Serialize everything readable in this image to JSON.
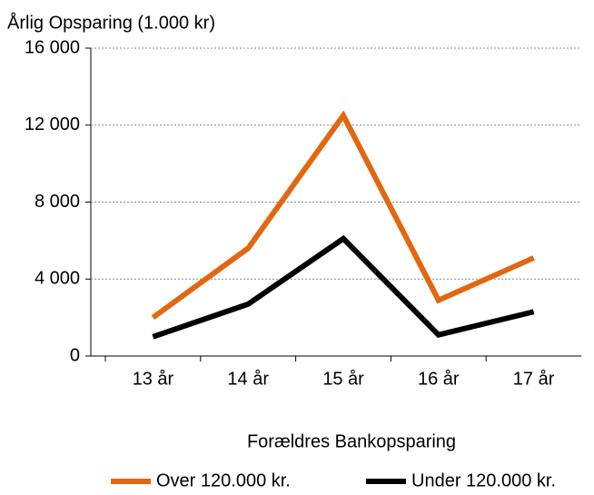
{
  "chart_data": {
    "type": "line",
    "title": "Årlig Opsparing (1.000 kr)",
    "x_label": "Forældres Bankopsparing",
    "categories": [
      "13 år",
      "14 år",
      "15 år",
      "16 år",
      "17 år"
    ],
    "series": [
      {
        "name": "Over 120.000 kr.",
        "color": "#e2670f",
        "values": [
          2000,
          5600,
          12500,
          2900,
          5100
        ]
      },
      {
        "name": "Under 120.000 kr.",
        "color": "#000000",
        "values": [
          1000,
          2700,
          6100,
          1100,
          2300
        ]
      }
    ],
    "ylim": [
      0,
      16000
    ],
    "yticks": [
      0,
      {
        "value": 4000,
        "label": "4 000"
      },
      {
        "value": 8000,
        "label": "8 000"
      },
      {
        "value": 12000,
        "label": "12 000"
      },
      {
        "value": 16000,
        "label": "16 000"
      }
    ],
    "grid": true
  }
}
